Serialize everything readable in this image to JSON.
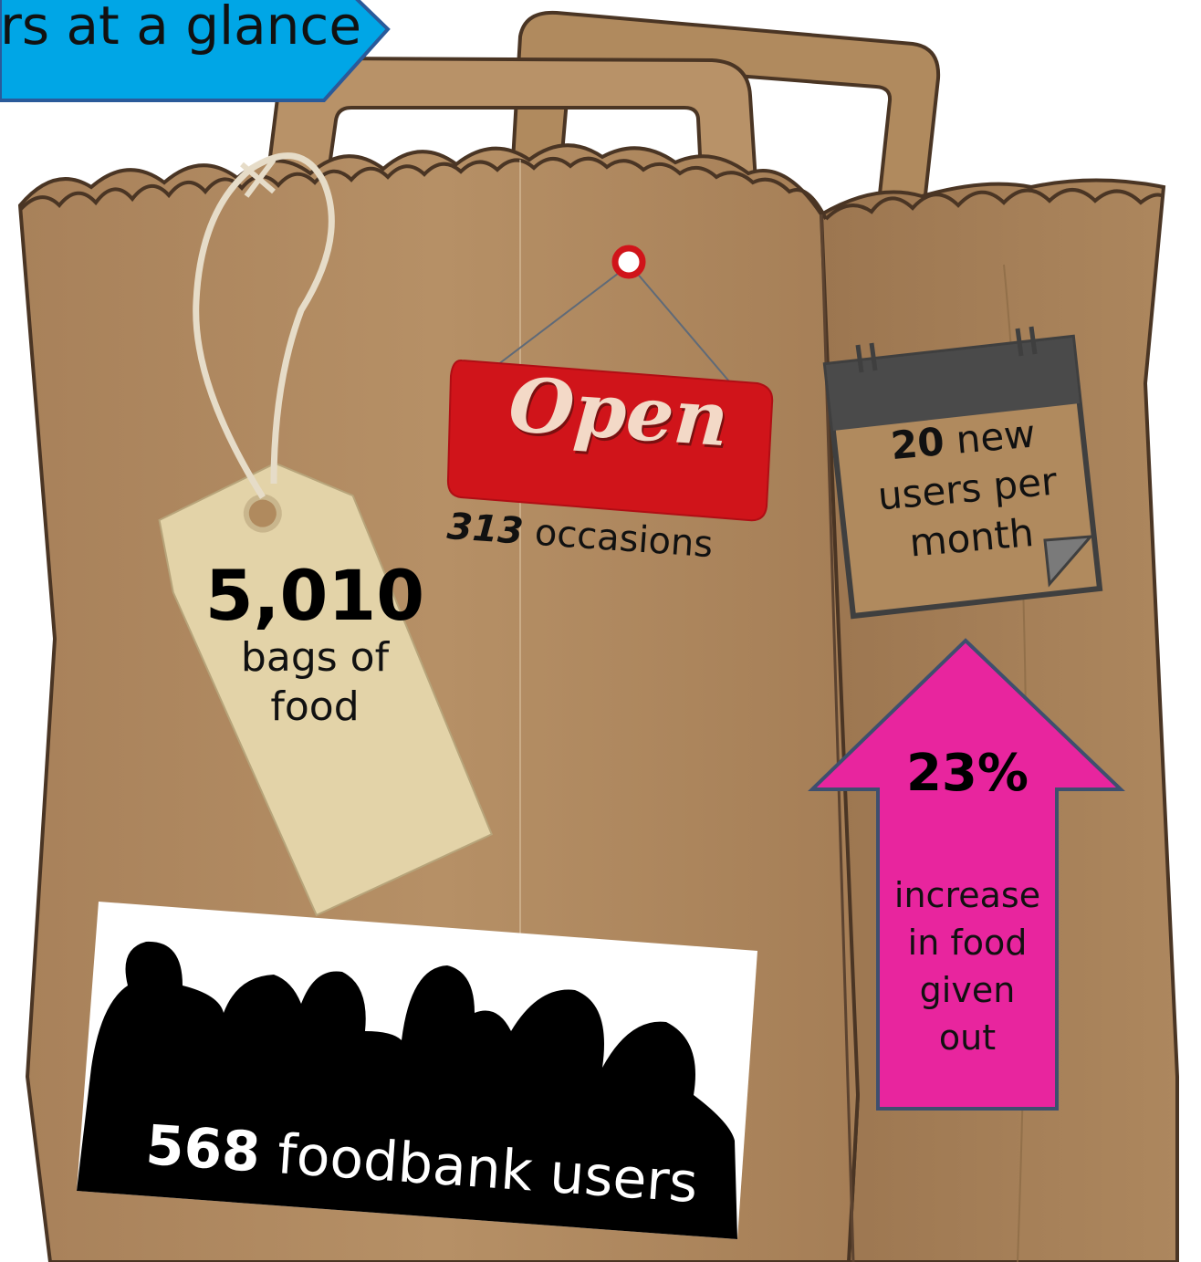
{
  "header": {
    "title": "rs at a glance",
    "color": "#00a6e6"
  },
  "tag": {
    "number": "5,010",
    "line1": "bags of",
    "line2": "food"
  },
  "open_sign": {
    "word": "Open",
    "count": "313",
    "count_label": "occasions",
    "color": "#d0141a"
  },
  "calendar": {
    "number": "20",
    "text_a": "new",
    "text_b": "users per",
    "text_c": "month"
  },
  "arrow": {
    "percent": "23%",
    "line1": "increase",
    "line2": "in food",
    "line3": "given",
    "line4": "out",
    "color": "#e8259e"
  },
  "people": {
    "number": "568",
    "label": "foodbank users"
  },
  "colors": {
    "bag": "#b08a5e",
    "bag_dark": "#8a6a45",
    "tag": "#e3d3a8"
  }
}
